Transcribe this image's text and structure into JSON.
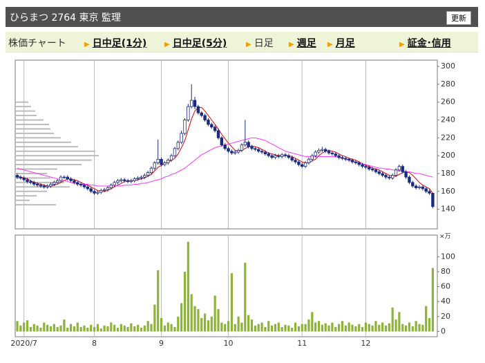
{
  "header": {
    "title": "ひらまつ 2764 東京 監理",
    "button": "更新"
  },
  "nav": [
    {
      "label": "株価チャート",
      "link": false,
      "arrow": false
    },
    {
      "label": "日中足(1分)",
      "link": true,
      "arrow": true
    },
    {
      "label": "日中足(5分)",
      "link": true,
      "arrow": true
    },
    {
      "label": "日足",
      "link": false,
      "arrow": true
    },
    {
      "label": "週足",
      "link": true,
      "arrow": true
    },
    {
      "label": "月足",
      "link": true,
      "arrow": true
    },
    {
      "label": "証金･信用",
      "link": true,
      "arrow": true
    }
  ],
  "chart_data": {
    "type": "candlestick",
    "xticks": [
      {
        "value": 2,
        "label": "2020/7"
      },
      {
        "value": 23,
        "label": "8"
      },
      {
        "value": 43,
        "label": "9"
      },
      {
        "value": 63,
        "label": "10"
      },
      {
        "value": 85,
        "label": "11"
      },
      {
        "value": 104,
        "label": "12"
      }
    ],
    "ylim": [
      118,
      307
    ],
    "yticks": [
      140,
      160,
      180,
      200,
      220,
      240,
      260,
      280,
      300
    ],
    "volume_ylim": [
      -7,
      129
    ],
    "volume_yticks": [
      0,
      20,
      40,
      60,
      80,
      100
    ],
    "volume_unit": "×万",
    "up_color": "#ffffff",
    "down_color": "#1a2a80",
    "edge_color": "#1a2a80",
    "volume_color": "#8db33a",
    "open": [
      178,
      176,
      175,
      173,
      171,
      170,
      168,
      167,
      166,
      165,
      166,
      168,
      170,
      172,
      176,
      176,
      174,
      172,
      170,
      168,
      167,
      165,
      163,
      160,
      158,
      159,
      161,
      162,
      164,
      167,
      170,
      172,
      173,
      172,
      171,
      172,
      174,
      175,
      176,
      178,
      181,
      186,
      192,
      196,
      190,
      192,
      195,
      200,
      208,
      215,
      225,
      240,
      255,
      262,
      255,
      248,
      245,
      240,
      235,
      232,
      228,
      220,
      212,
      208,
      205,
      203,
      204,
      206,
      212,
      215,
      210,
      208,
      207,
      205,
      204,
      202,
      200,
      198,
      200,
      199,
      201,
      200,
      198,
      195,
      193,
      190,
      188,
      192,
      196,
      200,
      204,
      206,
      207,
      205,
      203,
      202,
      200,
      198,
      197,
      196,
      195,
      193,
      192,
      190,
      188,
      187,
      185,
      184,
      182,
      180,
      178,
      176,
      175,
      178,
      184,
      188,
      182,
      176,
      170,
      166,
      164,
      165,
      163,
      160,
      158
    ],
    "high": [
      180,
      178,
      177,
      175,
      173,
      172,
      170,
      169,
      168,
      168,
      170,
      172,
      174,
      178,
      178,
      178,
      176,
      174,
      172,
      170,
      169,
      167,
      165,
      162,
      161,
      163,
      164,
      166,
      169,
      172,
      174,
      175,
      175,
      174,
      174,
      176,
      177,
      178,
      180,
      183,
      188,
      194,
      218,
      198,
      194,
      197,
      202,
      210,
      217,
      228,
      242,
      258,
      280,
      266,
      257,
      250,
      247,
      242,
      237,
      234,
      230,
      222,
      214,
      210,
      207,
      206,
      208,
      214,
      240,
      217,
      212,
      210,
      209,
      207,
      206,
      204,
      202,
      202,
      202,
      203,
      203,
      202,
      200,
      197,
      195,
      192,
      194,
      198,
      202,
      206,
      208,
      210,
      209,
      207,
      205,
      204,
      202,
      200,
      199,
      198,
      197,
      195,
      194,
      192,
      190,
      189,
      187,
      186,
      184,
      182,
      180,
      178,
      180,
      186,
      190,
      190,
      184,
      178,
      172,
      168,
      167,
      167,
      165,
      162,
      158
    ],
    "low": [
      174,
      173,
      171,
      169,
      168,
      166,
      165,
      164,
      163,
      163,
      164,
      166,
      168,
      170,
      174,
      172,
      170,
      168,
      166,
      165,
      163,
      161,
      158,
      156,
      156,
      157,
      159,
      160,
      162,
      165,
      168,
      170,
      170,
      169,
      169,
      170,
      172,
      173,
      174,
      176,
      179,
      184,
      190,
      188,
      188,
      190,
      193,
      198,
      206,
      213,
      223,
      238,
      253,
      252,
      246,
      243,
      238,
      233,
      230,
      226,
      218,
      210,
      206,
      203,
      201,
      201,
      202,
      204,
      210,
      208,
      206,
      205,
      203,
      202,
      200,
      198,
      196,
      196,
      197,
      197,
      198,
      196,
      193,
      191,
      188,
      186,
      186,
      190,
      194,
      198,
      202,
      204,
      203,
      201,
      200,
      198,
      196,
      195,
      194,
      193,
      191,
      190,
      188,
      186,
      185,
      183,
      182,
      180,
      178,
      176,
      174,
      173,
      173,
      176,
      182,
      180,
      174,
      168,
      164,
      162,
      162,
      161,
      158,
      156,
      141
    ],
    "close": [
      176,
      175,
      173,
      171,
      170,
      168,
      167,
      166,
      165,
      166,
      168,
      170,
      172,
      176,
      176,
      174,
      172,
      170,
      168,
      167,
      165,
      163,
      160,
      158,
      159,
      161,
      162,
      164,
      167,
      170,
      172,
      173,
      172,
      171,
      172,
      174,
      175,
      176,
      178,
      181,
      186,
      192,
      196,
      190,
      192,
      195,
      200,
      208,
      215,
      225,
      240,
      255,
      262,
      255,
      248,
      245,
      240,
      235,
      232,
      228,
      220,
      212,
      208,
      205,
      203,
      204,
      206,
      212,
      215,
      210,
      208,
      207,
      205,
      204,
      202,
      200,
      198,
      200,
      199,
      201,
      200,
      198,
      195,
      193,
      190,
      188,
      192,
      196,
      200,
      204,
      206,
      207,
      205,
      203,
      202,
      200,
      198,
      197,
      196,
      195,
      193,
      192,
      190,
      188,
      187,
      185,
      184,
      182,
      180,
      178,
      176,
      175,
      178,
      184,
      188,
      182,
      176,
      170,
      166,
      164,
      165,
      163,
      160,
      158,
      143
    ],
    "volume": [
      14,
      8,
      12,
      15,
      6,
      10,
      8,
      5,
      12,
      9,
      7,
      10,
      6,
      8,
      16,
      5,
      10,
      7,
      12,
      6,
      8,
      5,
      9,
      6,
      10,
      4,
      8,
      7,
      12,
      9,
      5,
      10,
      8,
      6,
      11,
      7,
      9,
      5,
      8,
      14,
      10,
      36,
      82,
      18,
      8,
      12,
      10,
      6,
      20,
      38,
      80,
      120,
      50,
      34,
      30,
      18,
      24,
      15,
      20,
      48,
      30,
      12,
      10,
      14,
      78,
      10,
      20,
      12,
      92,
      22,
      16,
      8,
      10,
      12,
      6,
      14,
      8,
      10,
      12,
      6,
      9,
      8,
      5,
      12,
      7,
      10,
      10,
      16,
      26,
      12,
      14,
      9,
      11,
      8,
      12,
      6,
      10,
      14,
      8,
      12,
      9,
      7,
      10,
      6,
      12,
      10,
      8,
      14,
      9,
      12,
      8,
      11,
      32,
      16,
      26,
      10,
      8,
      12,
      7,
      14,
      10,
      9,
      34,
      18,
      85
    ],
    "series": [
      {
        "color": "#e00000",
        "values": [
          177,
          176,
          175,
          174,
          172,
          170,
          169,
          168,
          167,
          166,
          166,
          167,
          168,
          170,
          172,
          174,
          174,
          173,
          172,
          170,
          168,
          167,
          165,
          163,
          161,
          160,
          160,
          161,
          163,
          165,
          167,
          169,
          171,
          172,
          172,
          172,
          173,
          174,
          175,
          177,
          179,
          183,
          187,
          189,
          191,
          193,
          195,
          197,
          202,
          209,
          217,
          229,
          241,
          250,
          254,
          254,
          250,
          245,
          240,
          235,
          230,
          224,
          219,
          214,
          210,
          206,
          205,
          206,
          208,
          210,
          211,
          210,
          209,
          207,
          205,
          203,
          202,
          201,
          200,
          200,
          200,
          200,
          199,
          197,
          195,
          193,
          192,
          192,
          194,
          196,
          200,
          203,
          205,
          206,
          205,
          204,
          202,
          200,
          199,
          197,
          196,
          195,
          193,
          191,
          189,
          188,
          186,
          185,
          184,
          182,
          180,
          178,
          177,
          177,
          179,
          181,
          182,
          181,
          178,
          174,
          170,
          167,
          165,
          163,
          158
        ]
      },
      {
        "color": "#ff33ff",
        "values": [
          186,
          185,
          184,
          183,
          182,
          181,
          180,
          179,
          178,
          177,
          176,
          175,
          174,
          173,
          172,
          171,
          170,
          169,
          169,
          168,
          168,
          168,
          167,
          167,
          166,
          166,
          166,
          166,
          166,
          166,
          166,
          166,
          167,
          167,
          167,
          168,
          168,
          169,
          169,
          170,
          171,
          172,
          173,
          174,
          176,
          177,
          179,
          180,
          182,
          184,
          186,
          189,
          192,
          195,
          198,
          201,
          203,
          205,
          207,
          209,
          210,
          211,
          212,
          213,
          214,
          215,
          216,
          217,
          218,
          219,
          220,
          220,
          219,
          218,
          217,
          215,
          213,
          211,
          209,
          207,
          205,
          204,
          203,
          202,
          201,
          200,
          199,
          199,
          199,
          199,
          199,
          199,
          199,
          199,
          199,
          199,
          198,
          197,
          196,
          195,
          194,
          193,
          192,
          191,
          190,
          189,
          188,
          187,
          186,
          186,
          185,
          185,
          184,
          184,
          183,
          183,
          182,
          182,
          181,
          180,
          180,
          179,
          178,
          177,
          176
        ]
      }
    ],
    "price_volume": {
      "prices": [
        145,
        150,
        155,
        160,
        165,
        170,
        175,
        180,
        185,
        190,
        195,
        200,
        205,
        210,
        215,
        220,
        225,
        230,
        235,
        240,
        245,
        250,
        255,
        260
      ],
      "values": [
        58,
        20,
        30,
        45,
        78,
        70,
        50,
        45,
        60,
        95,
        110,
        120,
        115,
        90,
        80,
        65,
        55,
        50,
        48,
        40,
        30,
        28,
        22,
        18
      ]
    }
  }
}
